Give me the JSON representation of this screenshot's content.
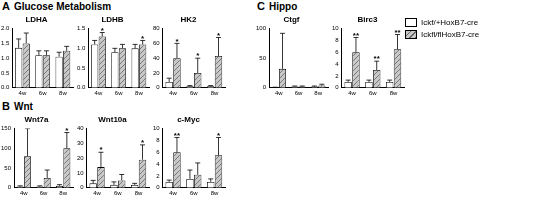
{
  "panels": [
    {
      "label": "A",
      "title": "Glucose Metabolism"
    },
    {
      "label": "B",
      "title": "Wnt"
    },
    {
      "label": "C",
      "title": "Hippo"
    }
  ],
  "chart_data": [
    {
      "type": "bar",
      "panel": "A",
      "title": "LDHA",
      "categories": [
        "4w",
        "6w",
        "8w"
      ],
      "ylim": [
        0,
        2
      ],
      "yticks": [
        {
          "value": 0,
          "label": "0.0"
        },
        {
          "value": 0.5,
          "label": "0.5"
        },
        {
          "value": 1,
          "label": "1.0"
        },
        {
          "value": 1.5,
          "label": "1.5"
        },
        {
          "value": 2,
          "label": "2.0"
        }
      ],
      "grid": false,
      "series": [
        {
          "name": "Ickf/+HoxB7-cre",
          "color": "#ffffff",
          "values": [
            1.35,
            1.1,
            1.05
          ],
          "errors": [
            0.3,
            0.15,
            0.15
          ],
          "stars": [
            null,
            null,
            null
          ]
        },
        {
          "name": "Ickfl/flHoxB7-cre",
          "color": "#c8c8c8",
          "values": [
            1.5,
            1.1,
            1.25
          ],
          "errors": [
            0.35,
            0.15,
            0.15
          ],
          "stars": [
            null,
            null,
            null
          ]
        }
      ]
    },
    {
      "type": "bar",
      "panel": "A",
      "title": "LDHB",
      "categories": [
        "4w",
        "6w",
        "8w"
      ],
      "ylim": [
        0,
        1.5
      ],
      "yticks": [
        {
          "value": 0,
          "label": "0.0"
        },
        {
          "value": 0.5,
          "label": "0.5"
        },
        {
          "value": 1,
          "label": "1.0"
        },
        {
          "value": 1.5,
          "label": "1.5"
        }
      ],
      "grid": false,
      "series": [
        {
          "name": "Ickf/+HoxB7-cre",
          "color": "#ffffff",
          "values": [
            1.1,
            0.9,
            1.0
          ],
          "errors": [
            0.1,
            0.1,
            0.1
          ],
          "stars": [
            null,
            null,
            null
          ]
        },
        {
          "name": "Ickfl/flHoxB7-cre",
          "color": "#c8c8c8",
          "values": [
            1.3,
            1.0,
            1.1
          ],
          "errors": [
            0.1,
            0.1,
            0.1
          ],
          "stars": [
            "*",
            null,
            "*"
          ]
        }
      ]
    },
    {
      "type": "bar",
      "panel": "A",
      "title": "HK2",
      "categories": [
        "4w",
        "6w",
        "8w"
      ],
      "ylim": [
        0,
        80
      ],
      "yticks": [
        0,
        20,
        40,
        60,
        80
      ],
      "grid": false,
      "series": [
        {
          "name": "Ickf/+HoxB7-cre",
          "color": "#ffffff",
          "values": [
            8,
            2,
            2
          ],
          "errors": [
            5,
            1,
            1
          ],
          "stars": [
            null,
            null,
            null
          ]
        },
        {
          "name": "Ickfl/flHoxB7-cre",
          "color": "#c8c8c8",
          "values": [
            40,
            20,
            43
          ],
          "errors": [
            20,
            20,
            25
          ],
          "stars": [
            "*",
            "*",
            "*"
          ]
        }
      ]
    },
    {
      "type": "bar",
      "panel": "B",
      "title": "Wnt7a",
      "categories": [
        "4w",
        "6w",
        "8w"
      ],
      "ylim": [
        0,
        150
      ],
      "yticks": [
        0,
        50,
        100,
        150
      ],
      "grid": false,
      "series": [
        {
          "name": "Ickf/+HoxB7-cre",
          "color": "#ffffff",
          "values": [
            3,
            3,
            5
          ],
          "errors": [
            2,
            2,
            3
          ],
          "stars": [
            null,
            null,
            null
          ]
        },
        {
          "name": "Ickfl/flHoxB7-cre",
          "color": "#c8c8c8",
          "values": [
            80,
            25,
            100
          ],
          "errors": [
            70,
            20,
            40
          ],
          "stars": [
            null,
            null,
            "*"
          ]
        }
      ]
    },
    {
      "type": "bar",
      "panel": "B",
      "title": "Wnt10a",
      "categories": [
        "4w",
        "6w",
        "8w"
      ],
      "ylim": [
        0,
        40
      ],
      "yticks": [
        0,
        10,
        20,
        30,
        40
      ],
      "grid": false,
      "series": [
        {
          "name": "Ickf/+HoxB7-cre",
          "color": "#ffffff",
          "values": [
            3,
            2,
            2
          ],
          "errors": [
            2,
            2,
            1
          ],
          "stars": [
            null,
            null,
            null
          ]
        },
        {
          "name": "Ickfl/flHoxB7-cre",
          "color": "#c8c8c8",
          "values": [
            14,
            5,
            19
          ],
          "errors": [
            10,
            4,
            10
          ],
          "stars": [
            "*",
            null,
            "*"
          ]
        }
      ]
    },
    {
      "type": "bar",
      "panel": "B",
      "title": "c-Myc",
      "categories": [
        "4w",
        "6w",
        "8w"
      ],
      "ylim": [
        0,
        10
      ],
      "yticks": [
        0,
        2,
        4,
        6,
        8,
        10
      ],
      "grid": false,
      "series": [
        {
          "name": "Ickf/+HoxB7-cre",
          "color": "#ffffff",
          "values": [
            1,
            1.5,
            1
          ],
          "errors": [
            0.3,
            1.5,
            0.5
          ],
          "stars": [
            null,
            null,
            null
          ]
        },
        {
          "name": "Ickfl/flHoxB7-cre",
          "color": "#c8c8c8",
          "values": [
            6,
            2.2,
            5.5
          ],
          "errors": [
            2.5,
            2,
            3
          ],
          "stars": [
            "**",
            null,
            "*"
          ]
        }
      ]
    },
    {
      "type": "bar",
      "panel": "C",
      "title": "Ctgf",
      "categories": [
        "4w",
        "6w",
        "8w"
      ],
      "ylim": [
        0,
        100
      ],
      "yticks": [
        0,
        50,
        100
      ],
      "grid": false,
      "series": [
        {
          "name": "Ickf/+HoxB7-cre",
          "color": "#ffffff",
          "values": [
            0.5,
            2,
            2
          ],
          "errors": [
            0.5,
            1,
            1
          ],
          "stars": [
            null,
            null,
            null
          ]
        },
        {
          "name": "Ickfl/flHoxB7-cre",
          "color": "#c8c8c8",
          "values": [
            32,
            2,
            4
          ],
          "errors": [
            60,
            1,
            2
          ],
          "stars": [
            null,
            null,
            null
          ]
        }
      ]
    },
    {
      "type": "bar",
      "panel": "C",
      "title": "Birc3",
      "categories": [
        "4w",
        "6w",
        "8w"
      ],
      "ylim": [
        0,
        10
      ],
      "yticks": [
        0,
        2,
        4,
        6,
        8,
        10
      ],
      "grid": false,
      "series": [
        {
          "name": "Ickf/+HoxB7-cre",
          "color": "#ffffff",
          "values": [
            1,
            1,
            1
          ],
          "errors": [
            0.3,
            0.3,
            0.3
          ],
          "stars": [
            null,
            null,
            null
          ]
        },
        {
          "name": "Ickfl/flHoxB7-cre",
          "color": "#c8c8c8",
          "values": [
            6,
            3,
            6.5
          ],
          "errors": [
            2.5,
            1.5,
            2.5
          ],
          "stars": [
            "**",
            "**",
            "**"
          ]
        }
      ]
    }
  ]
}
